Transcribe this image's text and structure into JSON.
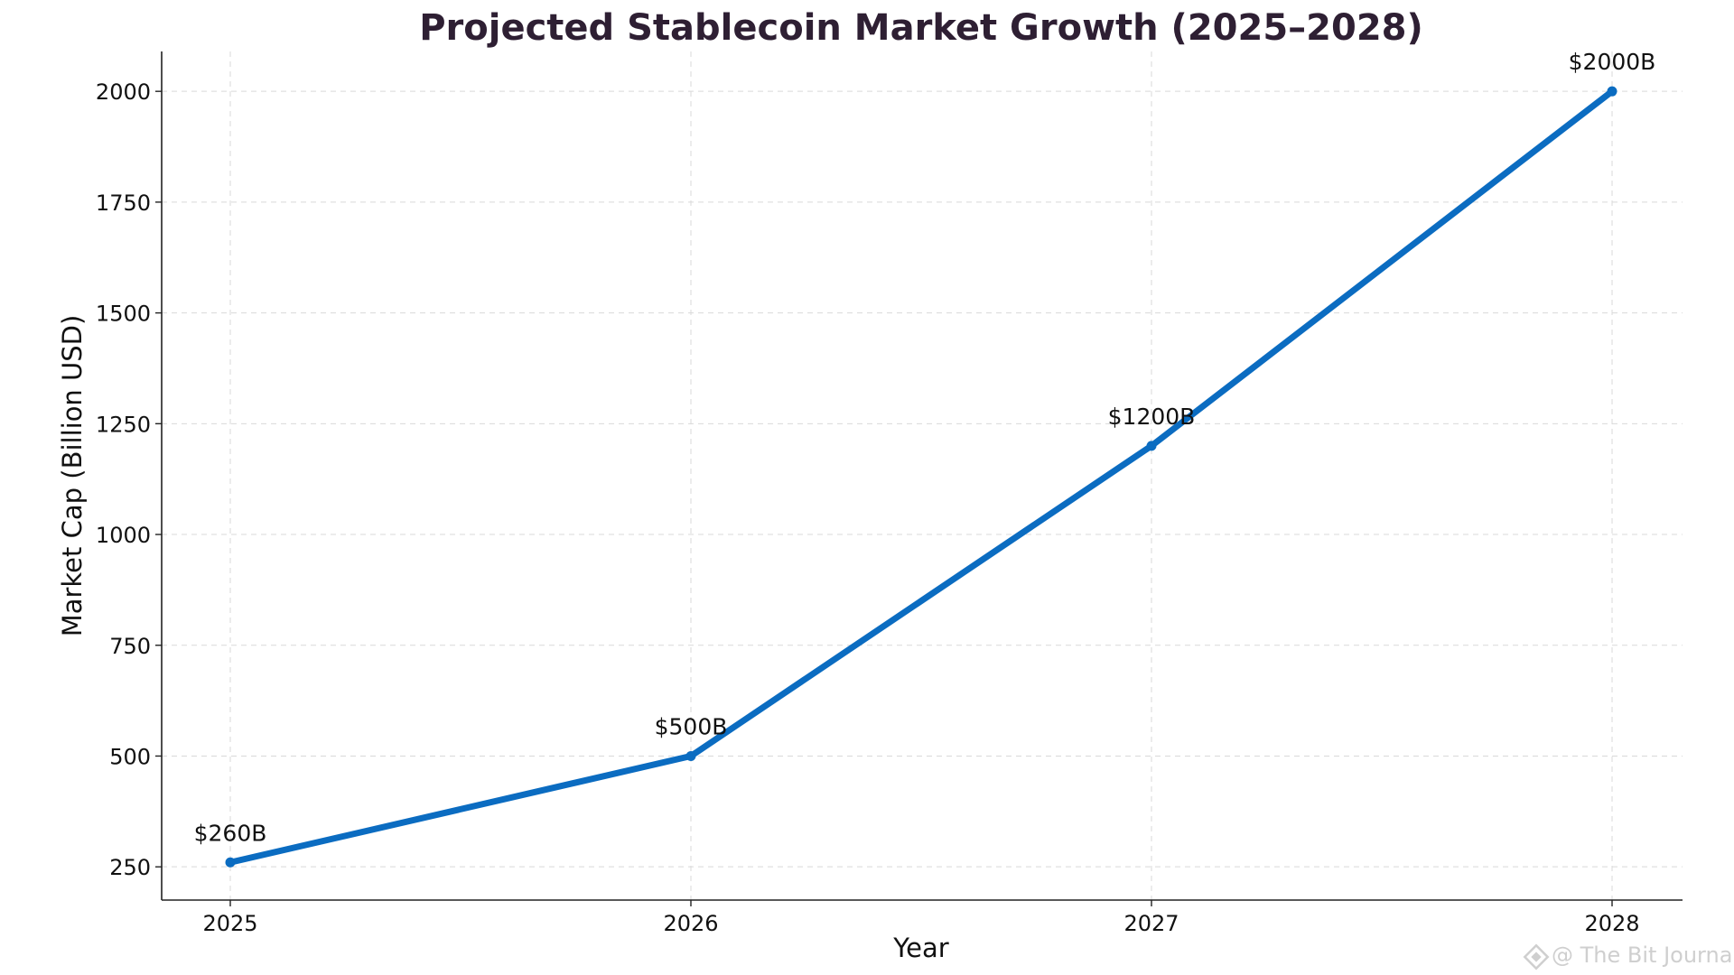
{
  "chart_data": {
    "type": "line",
    "title": "Projected Stablecoin Market Growth (2025–2028)",
    "xlabel": "Year",
    "ylabel": "Market Cap (Billion USD)",
    "categories": [
      "2025",
      "2026",
      "2027",
      "2028"
    ],
    "series": [
      {
        "values": [
          260,
          500,
          1200,
          2000
        ],
        "color": "#0b6cc1"
      }
    ],
    "data_labels": [
      "$260B",
      "$500B",
      "$1200B",
      "$2000B"
    ],
    "yticks": [
      250,
      500,
      750,
      1000,
      1250,
      1500,
      1750,
      2000
    ],
    "ylim": [
      175,
      2090
    ],
    "grid": true,
    "legend": "none"
  },
  "watermark": {
    "text": "@ The Bit Journal",
    "icon": "diamond-logo-icon"
  }
}
